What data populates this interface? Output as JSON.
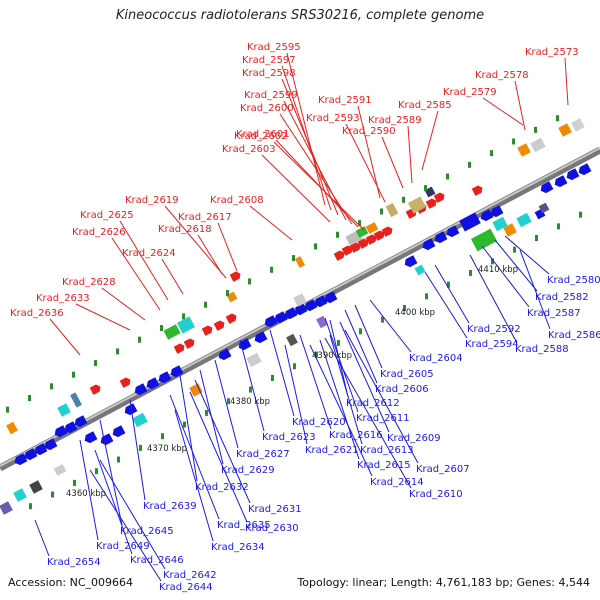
{
  "title": "Kineococcus radiotolerans SRS30216, complete genome",
  "accession": "Accession: NC_009664",
  "topology": "Topology: linear; Length: 4,761,183 bp; Genes: 4,544",
  "colors": {
    "top_label": "#e8211c",
    "bottom_label": "#1a1ae6",
    "backbone": "#8c8c8c",
    "tick_dot": "#2c8c2c"
  },
  "scale_ticks": [
    {
      "label": "4360 kbp",
      "kbp": 4360
    },
    {
      "label": "4370 kbp",
      "kbp": 4370
    },
    {
      "label": "4380 kbp",
      "kbp": 4380
    },
    {
      "label": "4390 kbp",
      "kbp": 4390
    },
    {
      "label": "4400 kbp",
      "kbp": 4400
    },
    {
      "label": "4410 kbp",
      "kbp": 4410
    }
  ],
  "top_labels": [
    "Krad_2595",
    "Krad_2597",
    "Krad_2598",
    "Krad_2599",
    "Krad_2600",
    "Krad_2601",
    "Krad_2602",
    "Krad_2603",
    "Krad_2591",
    "Krad_2593",
    "Krad_2590",
    "Krad_2589",
    "Krad_2585",
    "Krad_2579",
    "Krad_2578",
    "Krad_2573",
    "Krad_2619",
    "Krad_2617",
    "Krad_2618",
    "Krad_2608",
    "Krad_2625",
    "Krad_2626",
    "Krad_2624",
    "Krad_2628",
    "Krad_2633",
    "Krad_2636"
  ],
  "bottom_labels": [
    "Krad_2580",
    "Krad_2582",
    "Krad_2587",
    "Krad_2586",
    "Krad_2588",
    "Krad_2592",
    "Krad_2594",
    "Krad_2604",
    "Krad_2605",
    "Krad_2606",
    "Krad_2612",
    "Krad_2611",
    "Krad_2620",
    "Krad_2616",
    "Krad_2609",
    "Krad_2623",
    "Krad_2621",
    "Krad_2613",
    "Krad_2615",
    "Krad_2607",
    "Krad_2627",
    "Krad_2614",
    "Krad_2610",
    "Krad_2629",
    "Krad_2632",
    "Krad_2631",
    "Krad_2639",
    "Krad_2635",
    "Krad_2630",
    "Krad_2645",
    "Krad_2634",
    "Krad_2649",
    "Krad_2646",
    "Krad_2654",
    "Krad_2642",
    "Krad_2644"
  ]
}
